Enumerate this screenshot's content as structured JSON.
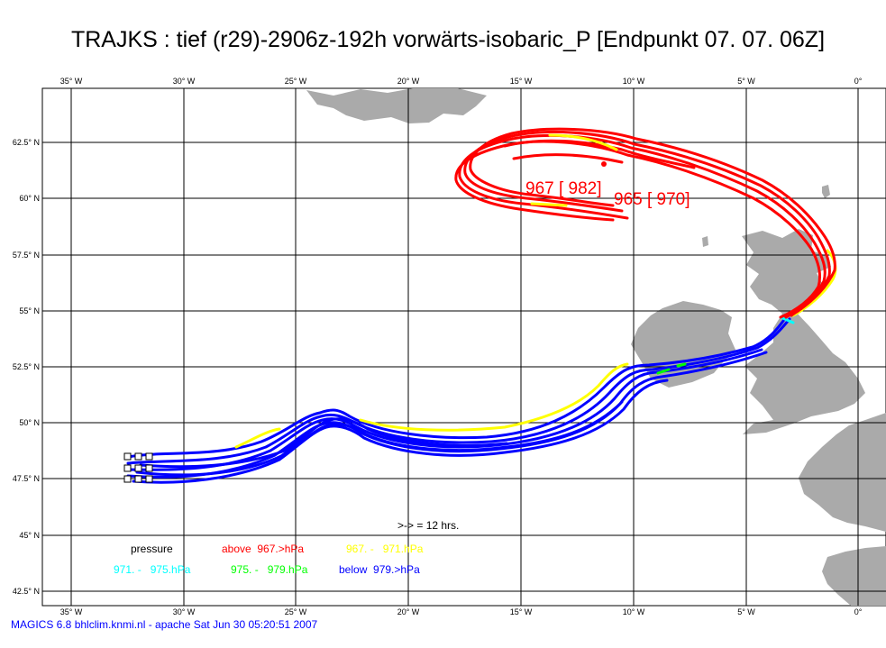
{
  "title": "TRAJKS : tief (r29)-2906z-192h vorwärts-isobaric_P [Endpunkt 07. 07. 06Z]",
  "footer": "MAGICS 6.8 bhlclim.knmi.nl - apache Sat Jun 30 05:20:51 2007",
  "map": {
    "lon_ticks": [
      "35° W",
      "30° W",
      "25° W",
      "20° W",
      "15° W",
      "10° W",
      "5° W",
      "0°"
    ],
    "lat_ticks": [
      "62.5° N",
      "60° N",
      "57.5° N",
      "55° N",
      "52.5° N",
      "50° N",
      "47.5° N",
      "45° N",
      "42.5° N"
    ],
    "land_color": "#aaaaaa",
    "grid_color": "#000000"
  },
  "annotations": {
    "label_1": "967 [ 982]",
    "label_2": "965 [ 970]",
    "interval_note": ">-> = 12 hrs."
  },
  "legend": {
    "heading": "pressure",
    "items": [
      {
        "text": "above  967.>hPa",
        "color": "#ff0000"
      },
      {
        "text": "967. -   971.hPa",
        "color": "#ffff00"
      },
      {
        "text": "971. -   975.hPa",
        "color": "#00ffff"
      },
      {
        "text": "975. -   979.hPa",
        "color": "#00ff00"
      },
      {
        "text": "below  979.>hPa",
        "color": "#0000ff"
      }
    ]
  },
  "colors": {
    "above_967": "#ff0000",
    "range_967_971": "#ffff00",
    "range_971_975": "#00ffff",
    "range_975_979": "#00ff00",
    "below_979": "#0000ff"
  }
}
